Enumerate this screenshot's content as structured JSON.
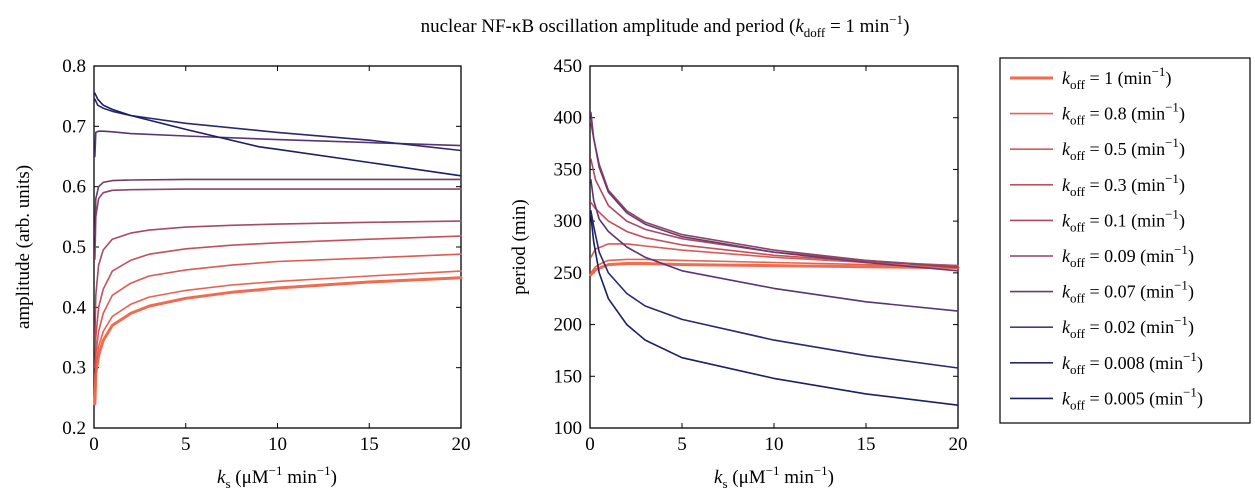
{
  "title": {
    "main": "nuclear NF-κB oscillation amplitude and period (",
    "k": "k",
    "sub": "doff",
    "rest": " = 1 min",
    "sup": "−1",
    "close": ")"
  },
  "legend": {
    "k": "k",
    "sub": "off",
    "unit": " (min",
    "sup": "−1",
    "unit_close": ")",
    "entries": [
      {
        "value": "1",
        "color": "#f26b4f",
        "width": 3
      },
      {
        "value": "0.8",
        "color": "#e8624f",
        "width": 1.6
      },
      {
        "value": "0.5",
        "color": "#dc5a53",
        "width": 1.6
      },
      {
        "value": "0.3",
        "color": "#c6505a",
        "width": 1.6
      },
      {
        "value": "0.1",
        "color": "#a84a63",
        "width": 1.6
      },
      {
        "value": "0.09",
        "color": "#8c4468",
        "width": 1.6
      },
      {
        "value": "0.07",
        "color": "#6e3a6a",
        "width": 1.6
      },
      {
        "value": "0.02",
        "color": "#5a3473",
        "width": 1.6
      },
      {
        "value": "0.008",
        "color": "#2c2870",
        "width": 1.6
      },
      {
        "value": "0.005",
        "color": "#1b1f63",
        "width": 1.6
      }
    ]
  },
  "chart_data": [
    {
      "type": "line",
      "xlabel_k": "k",
      "xlabel_sub": "s",
      "xlabel_unit": " (μM",
      "xlabel_sup": "−1",
      "xlabel_unit2": " min",
      "xlabel_sup2": "−1",
      "xlabel_close": ")",
      "ylabel": "amplitude (arb. units)",
      "xlim": [
        0,
        20
      ],
      "ylim": [
        0.2,
        0.8
      ],
      "xticks": [
        0,
        5,
        10,
        15,
        20
      ],
      "yticks": [
        "0.2",
        "0.3",
        "0.4",
        "0.5",
        "0.6",
        "0.7",
        "0.8"
      ],
      "series": [
        {
          "name": "koff = 1",
          "x": [
            0.05,
            0.1,
            0.25,
            0.5,
            1,
            2,
            3,
            5,
            7.5,
            10,
            15,
            20
          ],
          "y": [
            0.24,
            0.29,
            0.32,
            0.345,
            0.37,
            0.39,
            0.402,
            0.415,
            0.425,
            0.432,
            0.442,
            0.449
          ]
        },
        {
          "name": "koff = 0.8",
          "x": [
            0.05,
            0.1,
            0.25,
            0.5,
            1,
            2,
            3,
            5,
            7.5,
            10,
            15,
            20
          ],
          "y": [
            0.26,
            0.3,
            0.335,
            0.36,
            0.385,
            0.405,
            0.417,
            0.428,
            0.437,
            0.443,
            0.452,
            0.46
          ]
        },
        {
          "name": "koff = 0.5",
          "x": [
            0.05,
            0.1,
            0.25,
            0.5,
            1,
            2,
            3,
            5,
            7.5,
            10,
            15,
            20
          ],
          "y": [
            0.28,
            0.32,
            0.36,
            0.39,
            0.42,
            0.44,
            0.452,
            0.462,
            0.47,
            0.476,
            0.482,
            0.488
          ]
        },
        {
          "name": "koff = 0.3",
          "x": [
            0.05,
            0.1,
            0.25,
            0.5,
            1,
            2,
            3,
            5,
            7.5,
            10,
            15,
            20
          ],
          "y": [
            0.3,
            0.35,
            0.4,
            0.43,
            0.46,
            0.478,
            0.488,
            0.497,
            0.503,
            0.507,
            0.513,
            0.518
          ]
        },
        {
          "name": "koff = 0.1",
          "x": [
            0.05,
            0.1,
            0.25,
            0.5,
            1,
            2,
            3,
            5,
            7.5,
            10,
            15,
            20
          ],
          "y": [
            0.35,
            0.42,
            0.47,
            0.495,
            0.513,
            0.523,
            0.528,
            0.533,
            0.536,
            0.538,
            0.541,
            0.543
          ]
        },
        {
          "name": "koff = 0.09",
          "x": [
            0.05,
            0.1,
            0.25,
            0.5,
            1,
            2,
            5,
            10,
            20
          ],
          "y": [
            0.48,
            0.55,
            0.58,
            0.59,
            0.594,
            0.595,
            0.596,
            0.596,
            0.596
          ]
        },
        {
          "name": "koff = 0.07",
          "x": [
            0.05,
            0.1,
            0.25,
            0.5,
            1,
            2,
            5,
            10,
            20
          ],
          "y": [
            0.52,
            0.58,
            0.6,
            0.607,
            0.61,
            0.611,
            0.612,
            0.612,
            0.612
          ]
        },
        {
          "name": "koff = 0.02",
          "x": [
            0.05,
            0.1,
            0.25,
            0.5,
            1,
            2,
            5,
            10,
            15,
            20
          ],
          "y": [
            0.65,
            0.69,
            0.692,
            0.692,
            0.691,
            0.688,
            0.684,
            0.678,
            0.673,
            0.668
          ]
        },
        {
          "name": "koff = 0.008",
          "x": [
            0.05,
            0.2,
            0.5,
            1,
            2,
            5,
            10,
            15,
            20
          ],
          "y": [
            0.745,
            0.735,
            0.73,
            0.725,
            0.718,
            0.705,
            0.69,
            0.677,
            0.66
          ]
        },
        {
          "name": "koff = 0.005",
          "x": [
            0.05,
            0.2,
            0.5,
            1,
            2,
            5,
            9,
            10,
            15,
            20
          ],
          "y": [
            0.755,
            0.745,
            0.735,
            0.728,
            0.718,
            0.695,
            0.666,
            0.662,
            0.64,
            0.618
          ]
        }
      ]
    },
    {
      "type": "line",
      "xlabel_k": "k",
      "xlabel_sub": "s",
      "xlabel_unit": " (μM",
      "xlabel_sup": "−1",
      "xlabel_unit2": " min",
      "xlabel_sup2": "−1",
      "xlabel_close": ")",
      "ylabel": "period (min)",
      "xlim": [
        0,
        20
      ],
      "ylim": [
        100,
        450
      ],
      "xticks": [
        0,
        5,
        10,
        15,
        20
      ],
      "yticks": [
        "100",
        "150",
        "200",
        "250",
        "300",
        "350",
        "400",
        "450"
      ],
      "series": [
        {
          "name": "koff = 1",
          "x": [
            0.05,
            0.3,
            0.7,
            1,
            2,
            3,
            5,
            10,
            15,
            20
          ],
          "y": [
            248,
            253,
            256,
            258,
            259,
            259,
            258,
            257,
            256,
            255
          ]
        },
        {
          "name": "koff = 0.8",
          "x": [
            0.05,
            0.3,
            0.7,
            1,
            2,
            3,
            5,
            10,
            15,
            20
          ],
          "y": [
            250,
            256,
            260,
            262,
            263,
            263,
            262,
            260,
            258,
            256
          ]
        },
        {
          "name": "koff = 0.5",
          "x": [
            0.05,
            0.3,
            1,
            2,
            3,
            5,
            10,
            15,
            20
          ],
          "y": [
            265,
            273,
            278,
            278,
            276,
            272,
            265,
            260,
            257
          ]
        },
        {
          "name": "koff = 0.3",
          "x": [
            0.05,
            0.3,
            1,
            2,
            3,
            5,
            10,
            15,
            20
          ],
          "y": [
            318,
            312,
            300,
            290,
            284,
            277,
            267,
            261,
            257
          ]
        },
        {
          "name": "koff = 0.1",
          "x": [
            0.05,
            0.3,
            1,
            2,
            3,
            5,
            10,
            15,
            20
          ],
          "y": [
            360,
            340,
            315,
            300,
            292,
            283,
            270,
            262,
            256
          ]
        },
        {
          "name": "koff = 0.09",
          "x": [
            0.05,
            0.2,
            0.5,
            1,
            2,
            3,
            5,
            10,
            15,
            20
          ],
          "y": [
            395,
            380,
            355,
            330,
            310,
            299,
            287,
            272,
            262,
            255
          ]
        },
        {
          "name": "koff = 0.07",
          "x": [
            0.05,
            0.2,
            0.5,
            1,
            2,
            3,
            5,
            10,
            15,
            20
          ],
          "y": [
            405,
            380,
            352,
            328,
            308,
            297,
            285,
            270,
            260,
            252
          ]
        },
        {
          "name": "koff = 0.02",
          "x": [
            0.05,
            0.2,
            0.5,
            1,
            2,
            3,
            5,
            10,
            15,
            20
          ],
          "y": [
            340,
            320,
            302,
            290,
            275,
            265,
            252,
            235,
            222,
            213
          ]
        },
        {
          "name": "koff = 0.008",
          "x": [
            0.05,
            0.2,
            0.5,
            1,
            2,
            3,
            5,
            10,
            15,
            20
          ],
          "y": [
            310,
            295,
            270,
            250,
            230,
            218,
            205,
            185,
            170,
            158
          ]
        },
        {
          "name": "koff = 0.005",
          "x": [
            0.05,
            0.2,
            0.5,
            1,
            2,
            3,
            5,
            10,
            15,
            20
          ],
          "y": [
            305,
            280,
            250,
            225,
            200,
            185,
            168,
            148,
            133,
            122
          ]
        }
      ]
    }
  ]
}
